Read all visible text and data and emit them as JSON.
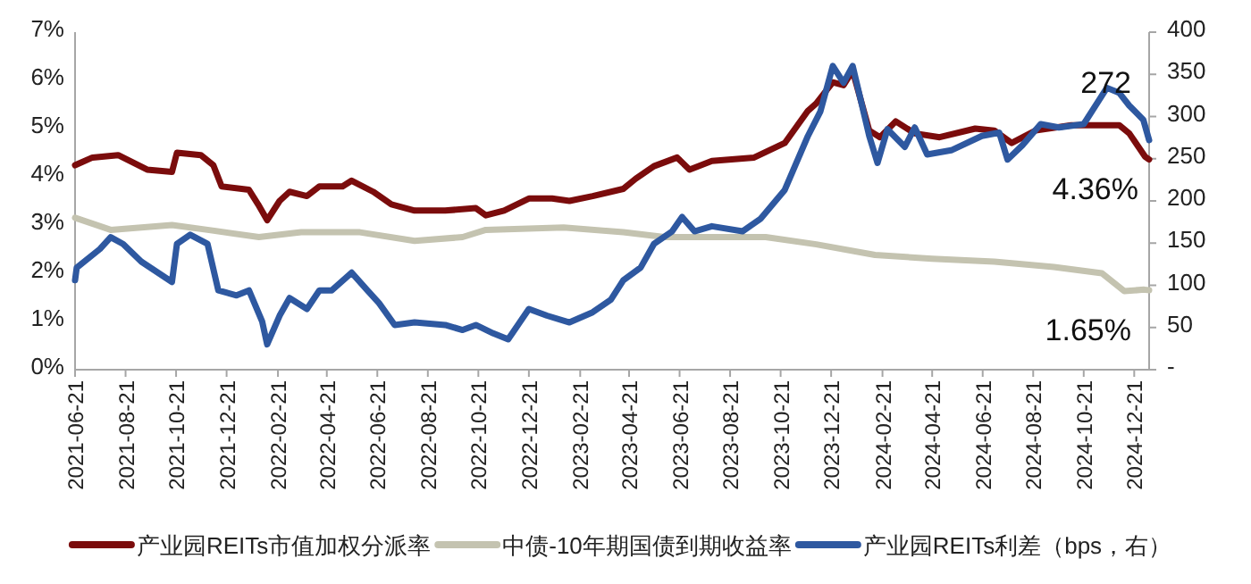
{
  "chart_data": {
    "type": "line",
    "series": [
      {
        "name": "产业园REITs市值加权分派率",
        "color": "#7b0c0c",
        "x": [
          "2021-06-21",
          "2021-07-12",
          "2021-08-12",
          "2021-09-16",
          "2021-10-16",
          "2021-10-22",
          "2021-11-20",
          "2021-12-05",
          "2021-12-15",
          "2022-01-17",
          "2022-01-28",
          "2022-02-08",
          "2022-02-23",
          "2022-03-07",
          "2022-03-28",
          "2022-04-12",
          "2022-05-10",
          "2022-05-21",
          "2022-06-16",
          "2022-07-08",
          "2022-08-05",
          "2022-09-11",
          "2022-10-18",
          "2022-10-30",
          "2022-11-21",
          "2022-12-21",
          "2023-01-18",
          "2023-02-08",
          "2023-03-08",
          "2023-04-14",
          "2023-04-29",
          "2023-05-21",
          "2023-06-18",
          "2023-07-03",
          "2023-07-30",
          "2023-09-19",
          "2023-10-26",
          "2023-11-23",
          "2023-12-03",
          "2023-12-23",
          "2024-01-05",
          "2024-01-16",
          "2024-02-05",
          "2024-02-18",
          "2024-03-08",
          "2024-03-31",
          "2024-04-30",
          "2024-06-12",
          "2024-07-05",
          "2024-07-26",
          "2024-08-24",
          "2024-10-06",
          "2024-11-03",
          "2024-12-03",
          "2024-12-15",
          "2025-01-03",
          "2025-01-08"
        ],
        "values": [
          4.24,
          4.4,
          4.45,
          4.15,
          4.1,
          4.5,
          4.45,
          4.24,
          3.8,
          3.73,
          3.43,
          3.1,
          3.5,
          3.69,
          3.6,
          3.8,
          3.8,
          3.92,
          3.69,
          3.43,
          3.3,
          3.3,
          3.35,
          3.2,
          3.3,
          3.55,
          3.55,
          3.5,
          3.6,
          3.75,
          3.96,
          4.22,
          4.4,
          4.15,
          4.33,
          4.4,
          4.7,
          5.37,
          5.52,
          5.96,
          5.9,
          6.2,
          4.96,
          4.82,
          5.15,
          4.9,
          4.82,
          5.0,
          4.96,
          4.7,
          4.96,
          5.07,
          5.07,
          5.07,
          4.9,
          4.42,
          4.36
        ]
      },
      {
        "name": "中债-10年期国债到期收益率",
        "color": "#c4c3b0",
        "x": [
          "2021-06-21",
          "2021-08-03",
          "2021-10-16",
          "2021-11-28",
          "2022-01-29",
          "2022-03-21",
          "2022-05-31",
          "2022-08-05",
          "2022-10-02",
          "2022-10-30",
          "2023-02-01",
          "2023-04-14",
          "2023-06-03",
          "2023-08-15",
          "2023-10-03",
          "2023-12-03",
          "2024-02-12",
          "2024-04-21",
          "2024-07-05",
          "2024-09-15",
          "2024-11-12",
          "2024-12-09",
          "2025-01-02",
          "2025-01-08"
        ],
        "values": [
          3.15,
          2.9,
          3.0,
          2.9,
          2.75,
          2.85,
          2.85,
          2.67,
          2.75,
          2.9,
          2.95,
          2.85,
          2.75,
          2.75,
          2.75,
          2.6,
          2.38,
          2.3,
          2.24,
          2.13,
          2.0,
          1.63,
          1.66,
          1.65
        ]
      },
      {
        "name": "产业园REITs利差（bps，右）",
        "color": "#2e58a0",
        "axis": "y2",
        "x": [
          "2021-06-21",
          "2021-06-23",
          "2021-07-21",
          "2021-08-03",
          "2021-08-18",
          "2021-09-09",
          "2021-10-16",
          "2021-10-22",
          "2021-11-07",
          "2021-11-28",
          "2021-12-11",
          "2022-01-02",
          "2022-01-17",
          "2022-02-02",
          "2022-02-08",
          "2022-02-23",
          "2022-03-07",
          "2022-03-28",
          "2022-04-12",
          "2022-04-27",
          "2022-05-21",
          "2022-06-09",
          "2022-06-23",
          "2022-07-12",
          "2022-08-05",
          "2022-09-11",
          "2022-10-02",
          "2022-10-18",
          "2022-11-08",
          "2022-11-26",
          "2022-12-21",
          "2023-01-12",
          "2023-02-08",
          "2023-03-08",
          "2023-03-30",
          "2023-04-14",
          "2023-05-05",
          "2023-05-21",
          "2023-06-12",
          "2023-06-24",
          "2023-07-09",
          "2023-07-30",
          "2023-09-05",
          "2023-09-27",
          "2023-10-26",
          "2023-11-23",
          "2023-12-08",
          "2023-12-23",
          "2024-01-05",
          "2024-01-16",
          "2024-02-05",
          "2024-02-15",
          "2024-02-27",
          "2024-03-19",
          "2024-03-31",
          "2024-04-15",
          "2024-05-14",
          "2024-06-20",
          "2024-07-11",
          "2024-07-21",
          "2024-08-08",
          "2024-08-30",
          "2024-09-21",
          "2024-10-21",
          "2024-11-18",
          "2024-12-03",
          "2024-12-15",
          "2025-01-01",
          "2025-01-08"
        ],
        "values": [
          106,
          121,
          143,
          157,
          149,
          128,
          104,
          149,
          160,
          149,
          94,
          88,
          94,
          57,
          30,
          64,
          85,
          72,
          94,
          94,
          115,
          94,
          79,
          53,
          56,
          53,
          47,
          53,
          43,
          36,
          72,
          64,
          56,
          68,
          83,
          106,
          121,
          149,
          164,
          181,
          164,
          170,
          164,
          179,
          213,
          277,
          306,
          360,
          340,
          360,
          277,
          245,
          285,
          264,
          287,
          255,
          260,
          277,
          281,
          249,
          266,
          291,
          287,
          291,
          334,
          328,
          313,
          296,
          272
        ]
      }
    ],
    "xlim": [
      "2021-06-21",
      "2025-01-08"
    ],
    "xticks": [
      "2021-06-21",
      "2021-08-21",
      "2021-10-21",
      "2021-12-21",
      "2022-02-21",
      "2022-04-21",
      "2022-06-21",
      "2022-08-21",
      "2022-10-21",
      "2022-12-21",
      "2023-02-21",
      "2023-04-21",
      "2023-06-21",
      "2023-08-21",
      "2023-10-21",
      "2023-12-21",
      "2024-02-21",
      "2024-04-21",
      "2024-06-21",
      "2024-08-21",
      "2024-10-21",
      "2024-12-21"
    ],
    "ylim": [
      0,
      7
    ],
    "yticks": [
      {
        "value": 0,
        "label": "0%"
      },
      {
        "value": 1,
        "label": "1%"
      },
      {
        "value": 2,
        "label": "2%"
      },
      {
        "value": 3,
        "label": "3%"
      },
      {
        "value": 4,
        "label": "4%"
      },
      {
        "value": 5,
        "label": "5%"
      },
      {
        "value": 6,
        "label": "6%"
      },
      {
        "value": 7,
        "label": "7%"
      }
    ],
    "y2lim": [
      0,
      400
    ],
    "y2ticks": [
      {
        "value": 0,
        "label": "-"
      },
      50,
      100,
      150,
      200,
      250,
      300,
      350,
      400
    ],
    "annotations": [
      "272",
      {
        "text": "4.36%",
        "x": "2025-01-08",
        "y": 4.36
      },
      {
        "text": "1.65%",
        "x": "2025-01-08",
        "y": 1.65
      }
    ],
    "legend": "bottom",
    "grid": false
  }
}
